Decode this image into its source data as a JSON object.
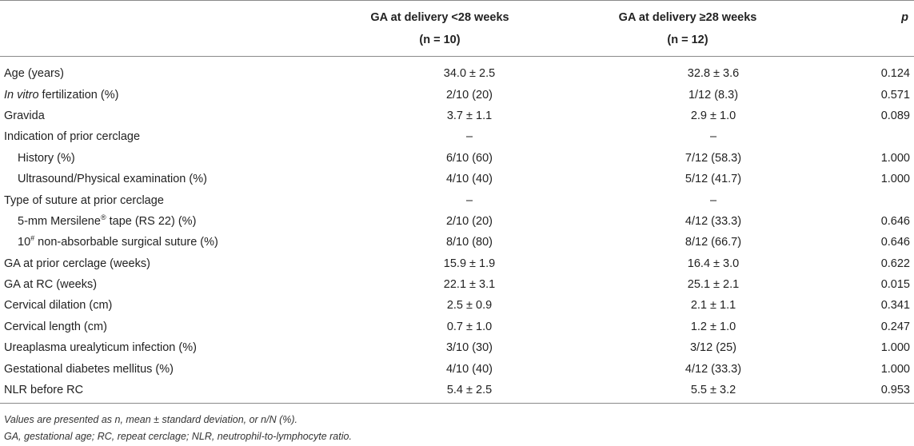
{
  "header": {
    "col1_line1": "GA at delivery <28 weeks",
    "col1_line2": "(n = 10)",
    "col2_line1": "GA at delivery ≥28 weeks",
    "col2_line2": "(n = 12)",
    "col_p": "p"
  },
  "rows": [
    {
      "label": "Age (years)",
      "c1": "34.0 ± 2.5",
      "c2": "32.8 ± 3.6",
      "p": "0.124"
    },
    {
      "label_italic": "In vitro",
      "label_rest": " fertilization (%)",
      "c1": "2/10 (20)",
      "c2": "1/12 (8.3)",
      "p": "0.571"
    },
    {
      "label": "Gravida",
      "c1": "3.7 ± 1.1",
      "c2": "2.9 ± 1.0",
      "p": "0.089"
    },
    {
      "label": "Indication of prior cerclage",
      "c1": "–",
      "c2": "–",
      "p": ""
    },
    {
      "label": "History (%)",
      "c1": "6/10 (60)",
      "c2": "7/12 (58.3)",
      "p": "1.000"
    },
    {
      "label": "Ultrasound/Physical examination (%)",
      "c1": "4/10 (40)",
      "c2": "5/12 (41.7)",
      "p": "1.000"
    },
    {
      "label": "Type of suture at prior cerclage",
      "c1": "–",
      "c2": "–",
      "p": ""
    },
    {
      "label_pre": "5-mm Mersilene",
      "label_sup": "®",
      "label_post": " tape (RS 22) (%)",
      "c1": "2/10 (20)",
      "c2": "4/12 (33.3)",
      "p": "0.646"
    },
    {
      "label_pre": "10",
      "label_sup": "#",
      "label_post": " non-absorbable surgical suture (%)",
      "c1": "8/10 (80)",
      "c2": "8/12 (66.7)",
      "p": "0.646"
    },
    {
      "label": "GA at prior cerclage (weeks)",
      "c1": "15.9 ± 1.9",
      "c2": "16.4 ± 3.0",
      "p": "0.622"
    },
    {
      "label": "GA at RC (weeks)",
      "c1": "22.1 ± 3.1",
      "c2": "25.1 ± 2.1",
      "p": "0.015"
    },
    {
      "label": "Cervical dilation (cm)",
      "c1": "2.5 ± 0.9",
      "c2": "2.1 ± 1.1",
      "p": "0.341"
    },
    {
      "label": "Cervical length (cm)",
      "c1": "0.7 ± 1.0",
      "c2": "1.2 ± 1.0",
      "p": "0.247"
    },
    {
      "label": "Ureaplasma urealyticum infection (%)",
      "c1": "3/10 (30)",
      "c2": "3/12 (25)",
      "p": "1.000"
    },
    {
      "label": "Gestational diabetes mellitus (%)",
      "c1": "4/10 (40)",
      "c2": "4/12 (33.3)",
      "p": "1.000"
    },
    {
      "label": "NLR before RC",
      "c1": "5.4 ± 2.5",
      "c2": "5.5 ± 3.2",
      "p": "0.953"
    }
  ],
  "footnotes": {
    "line1": "Values are presented as n, mean ± standard deviation, or n/N (%).",
    "line2": "GA, gestational age; RC, repeat cerclage; NLR, neutrophil-to-lymphocyte ratio."
  }
}
